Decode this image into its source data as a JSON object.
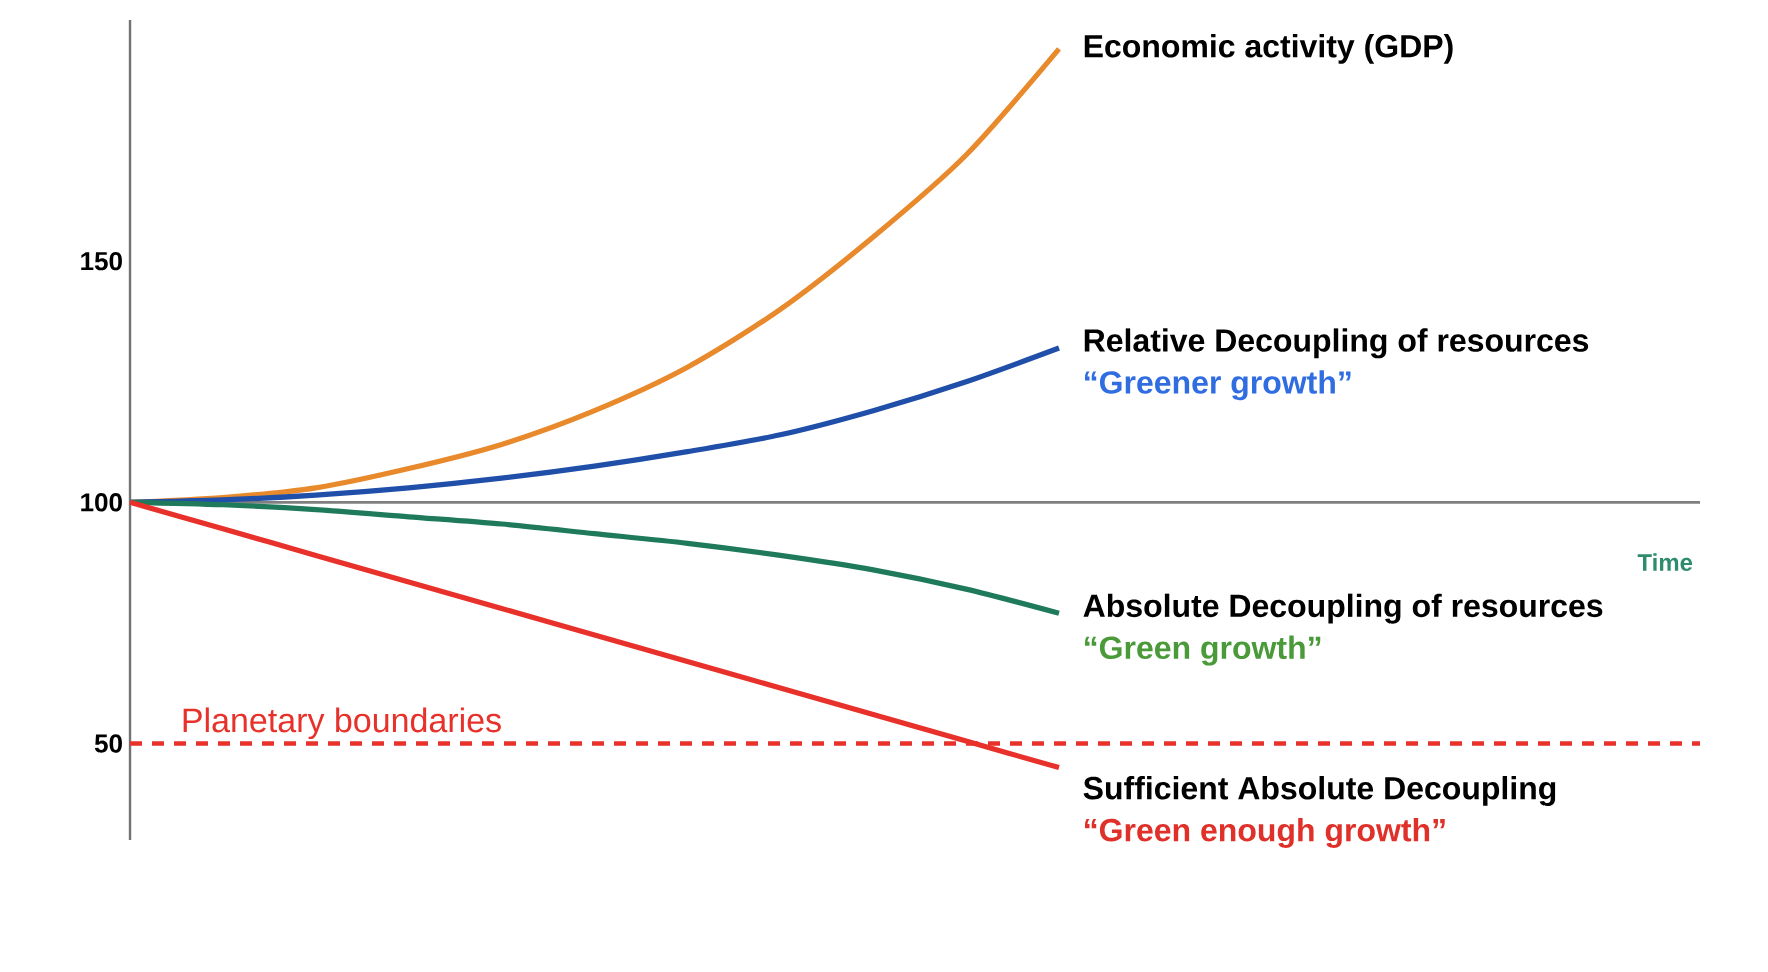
{
  "chart_data": {
    "type": "line",
    "categories": [
      null,
      null,
      null,
      null,
      null,
      null,
      null,
      null,
      null,
      null,
      null
    ],
    "ylim": [
      30,
      200
    ],
    "yticks": [
      50,
      100,
      150
    ],
    "tick_labels": "y",
    "line_style": "solid",
    "series": [
      {
        "name": "Economic activity (GDP)",
        "color": "#e8892b",
        "values": [
          100,
          101,
          103,
          107,
          112,
          119,
          128,
          140,
          155,
          172,
          194
        ]
      },
      {
        "name": "Relative Decoupling of resources",
        "color": "#1f4fa8",
        "values": [
          100,
          100.5,
          101.5,
          103,
          105,
          107.5,
          110.5,
          114,
          119,
          125,
          132
        ]
      },
      {
        "name": "Absolute Decoupling of resources",
        "color": "#1f7a5c",
        "values": [
          100,
          99.5,
          98.5,
          97,
          95.5,
          93.5,
          91.5,
          89,
          86,
          82,
          77
        ]
      },
      {
        "name": "Sufficient Absolute Decoupling",
        "color": "#e8312a",
        "values": [
          100,
          94.5,
          89,
          83.5,
          78,
          72.5,
          67,
          61.5,
          56,
          50.5,
          45
        ]
      }
    ],
    "annotations": [
      "Time",
      "“Greener growth”",
      "“Green growth”",
      "“Green enough growth”"
    ],
    "ref_lines": [
      {
        "axis": "y",
        "value": 100,
        "color": "#7f7f7f",
        "line_style": "solid"
      },
      {
        "axis": "y",
        "value": 50,
        "label": "Planetary boundaries",
        "color": "#e8312a",
        "line_style": "dashed"
      }
    ]
  }
}
